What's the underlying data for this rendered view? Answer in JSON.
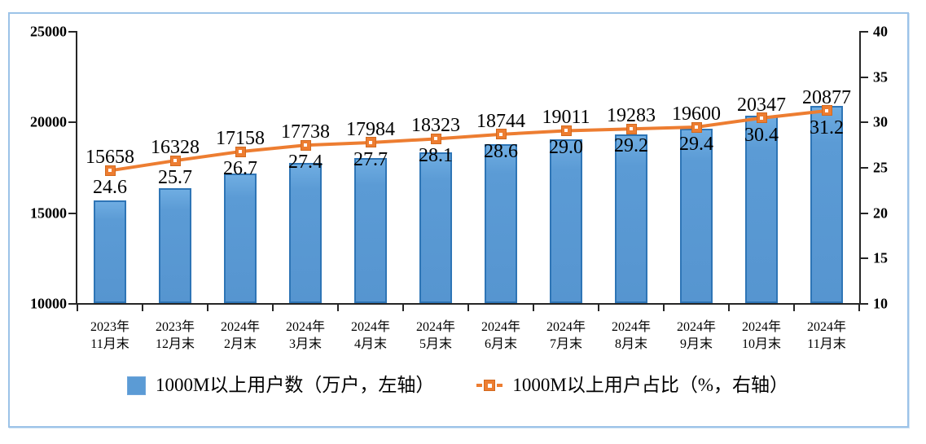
{
  "chart_data": {
    "type": "bar+line combo",
    "title": "",
    "categories": [
      "2023年\n11月末",
      "2023年\n12月末",
      "2024年\n2月末",
      "2024年\n3月末",
      "2024年\n4月末",
      "2024年\n5月末",
      "2024年\n6月末",
      "2024年\n7月末",
      "2024年\n8月末",
      "2024年\n9月末",
      "2024年\n10月末",
      "2024年\n11月末"
    ],
    "series": [
      {
        "name": "1000M以上用户数（万户，左轴）",
        "type": "bar",
        "axis": "left",
        "values": [
          15658,
          16328,
          17158,
          17738,
          17984,
          18323,
          18744,
          19011,
          19283,
          19600,
          20347,
          20877
        ],
        "labels": [
          "15658",
          "16328",
          "17158",
          "17738",
          "17984",
          "18323",
          "18744",
          "19011",
          "19283",
          "19600",
          "20347",
          "20877"
        ]
      },
      {
        "name": "1000M以上用户占比（%，右轴）",
        "type": "line",
        "axis": "right",
        "values": [
          24.6,
          25.7,
          26.7,
          27.4,
          27.7,
          28.1,
          28.6,
          29.0,
          29.2,
          29.4,
          30.4,
          31.2
        ],
        "labels": [
          "24.6",
          "25.7",
          "26.7",
          "27.4",
          "27.7",
          "28.1",
          "28.6",
          "29.0",
          "29.2",
          "29.4",
          "30.4",
          "31.2"
        ]
      }
    ],
    "left_axis": {
      "min": 10000,
      "max": 25000,
      "step": 5000,
      "ticks": [
        "25000",
        "20000",
        "15000",
        "10000"
      ],
      "tick_values": [
        25000,
        20000,
        15000,
        10000
      ]
    },
    "right_axis": {
      "min": 10,
      "max": 40,
      "step": 5,
      "ticks": [
        "40",
        "35",
        "30",
        "25",
        "20",
        "15",
        "10"
      ],
      "tick_values": [
        40,
        35,
        30,
        25,
        20,
        15,
        10
      ]
    },
    "legend": [
      {
        "label": "1000M以上用户数（万户，左轴）",
        "marker": "blue-square"
      },
      {
        "label": "1000M以上用户占比（%，右轴）",
        "marker": "orange-dash-square"
      }
    ],
    "grid": "off",
    "legend_position": "bottom-center",
    "colors": {
      "bar_fill": "#5B9BD5",
      "bar_border": "#2E75B6",
      "line": "#ED7D31",
      "frame_border": "#9CC3E8",
      "axis": "#262626",
      "text": "#000000"
    }
  }
}
